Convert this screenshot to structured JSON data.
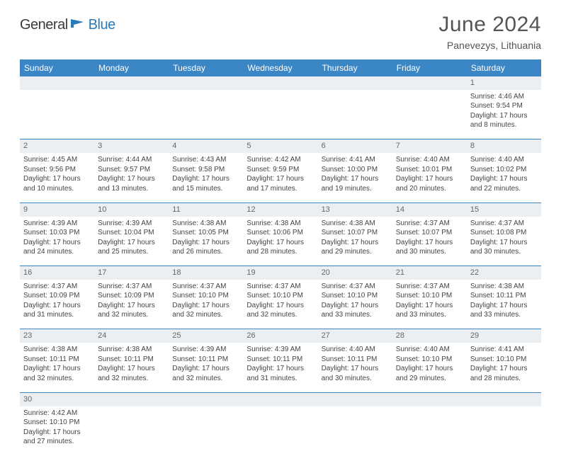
{
  "logo": {
    "part1": "General",
    "part2": "Blue"
  },
  "title": "June 2024",
  "subtitle": "Panevezys, Lithuania",
  "colors": {
    "header_bg": "#3b86c4",
    "header_text": "#ffffff",
    "daynum_bg": "#eceff1",
    "border": "#3b86c4",
    "logo_blue": "#2a7ab8",
    "text": "#444444"
  },
  "weekdays": [
    "Sunday",
    "Monday",
    "Tuesday",
    "Wednesday",
    "Thursday",
    "Friday",
    "Saturday"
  ],
  "weeks": [
    {
      "nums": [
        "",
        "",
        "",
        "",
        "",
        "",
        "1"
      ],
      "cells": [
        null,
        null,
        null,
        null,
        null,
        null,
        {
          "sunrise": "Sunrise: 4:46 AM",
          "sunset": "Sunset: 9:54 PM",
          "d1": "Daylight: 17 hours",
          "d2": "and 8 minutes."
        }
      ]
    },
    {
      "nums": [
        "2",
        "3",
        "4",
        "5",
        "6",
        "7",
        "8"
      ],
      "cells": [
        {
          "sunrise": "Sunrise: 4:45 AM",
          "sunset": "Sunset: 9:56 PM",
          "d1": "Daylight: 17 hours",
          "d2": "and 10 minutes."
        },
        {
          "sunrise": "Sunrise: 4:44 AM",
          "sunset": "Sunset: 9:57 PM",
          "d1": "Daylight: 17 hours",
          "d2": "and 13 minutes."
        },
        {
          "sunrise": "Sunrise: 4:43 AM",
          "sunset": "Sunset: 9:58 PM",
          "d1": "Daylight: 17 hours",
          "d2": "and 15 minutes."
        },
        {
          "sunrise": "Sunrise: 4:42 AM",
          "sunset": "Sunset: 9:59 PM",
          "d1": "Daylight: 17 hours",
          "d2": "and 17 minutes."
        },
        {
          "sunrise": "Sunrise: 4:41 AM",
          "sunset": "Sunset: 10:00 PM",
          "d1": "Daylight: 17 hours",
          "d2": "and 19 minutes."
        },
        {
          "sunrise": "Sunrise: 4:40 AM",
          "sunset": "Sunset: 10:01 PM",
          "d1": "Daylight: 17 hours",
          "d2": "and 20 minutes."
        },
        {
          "sunrise": "Sunrise: 4:40 AM",
          "sunset": "Sunset: 10:02 PM",
          "d1": "Daylight: 17 hours",
          "d2": "and 22 minutes."
        }
      ]
    },
    {
      "nums": [
        "9",
        "10",
        "11",
        "12",
        "13",
        "14",
        "15"
      ],
      "cells": [
        {
          "sunrise": "Sunrise: 4:39 AM",
          "sunset": "Sunset: 10:03 PM",
          "d1": "Daylight: 17 hours",
          "d2": "and 24 minutes."
        },
        {
          "sunrise": "Sunrise: 4:39 AM",
          "sunset": "Sunset: 10:04 PM",
          "d1": "Daylight: 17 hours",
          "d2": "and 25 minutes."
        },
        {
          "sunrise": "Sunrise: 4:38 AM",
          "sunset": "Sunset: 10:05 PM",
          "d1": "Daylight: 17 hours",
          "d2": "and 26 minutes."
        },
        {
          "sunrise": "Sunrise: 4:38 AM",
          "sunset": "Sunset: 10:06 PM",
          "d1": "Daylight: 17 hours",
          "d2": "and 28 minutes."
        },
        {
          "sunrise": "Sunrise: 4:38 AM",
          "sunset": "Sunset: 10:07 PM",
          "d1": "Daylight: 17 hours",
          "d2": "and 29 minutes."
        },
        {
          "sunrise": "Sunrise: 4:37 AM",
          "sunset": "Sunset: 10:07 PM",
          "d1": "Daylight: 17 hours",
          "d2": "and 30 minutes."
        },
        {
          "sunrise": "Sunrise: 4:37 AM",
          "sunset": "Sunset: 10:08 PM",
          "d1": "Daylight: 17 hours",
          "d2": "and 30 minutes."
        }
      ]
    },
    {
      "nums": [
        "16",
        "17",
        "18",
        "19",
        "20",
        "21",
        "22"
      ],
      "cells": [
        {
          "sunrise": "Sunrise: 4:37 AM",
          "sunset": "Sunset: 10:09 PM",
          "d1": "Daylight: 17 hours",
          "d2": "and 31 minutes."
        },
        {
          "sunrise": "Sunrise: 4:37 AM",
          "sunset": "Sunset: 10:09 PM",
          "d1": "Daylight: 17 hours",
          "d2": "and 32 minutes."
        },
        {
          "sunrise": "Sunrise: 4:37 AM",
          "sunset": "Sunset: 10:10 PM",
          "d1": "Daylight: 17 hours",
          "d2": "and 32 minutes."
        },
        {
          "sunrise": "Sunrise: 4:37 AM",
          "sunset": "Sunset: 10:10 PM",
          "d1": "Daylight: 17 hours",
          "d2": "and 32 minutes."
        },
        {
          "sunrise": "Sunrise: 4:37 AM",
          "sunset": "Sunset: 10:10 PM",
          "d1": "Daylight: 17 hours",
          "d2": "and 33 minutes."
        },
        {
          "sunrise": "Sunrise: 4:37 AM",
          "sunset": "Sunset: 10:10 PM",
          "d1": "Daylight: 17 hours",
          "d2": "and 33 minutes."
        },
        {
          "sunrise": "Sunrise: 4:38 AM",
          "sunset": "Sunset: 10:11 PM",
          "d1": "Daylight: 17 hours",
          "d2": "and 33 minutes."
        }
      ]
    },
    {
      "nums": [
        "23",
        "24",
        "25",
        "26",
        "27",
        "28",
        "29"
      ],
      "cells": [
        {
          "sunrise": "Sunrise: 4:38 AM",
          "sunset": "Sunset: 10:11 PM",
          "d1": "Daylight: 17 hours",
          "d2": "and 32 minutes."
        },
        {
          "sunrise": "Sunrise: 4:38 AM",
          "sunset": "Sunset: 10:11 PM",
          "d1": "Daylight: 17 hours",
          "d2": "and 32 minutes."
        },
        {
          "sunrise": "Sunrise: 4:39 AM",
          "sunset": "Sunset: 10:11 PM",
          "d1": "Daylight: 17 hours",
          "d2": "and 32 minutes."
        },
        {
          "sunrise": "Sunrise: 4:39 AM",
          "sunset": "Sunset: 10:11 PM",
          "d1": "Daylight: 17 hours",
          "d2": "and 31 minutes."
        },
        {
          "sunrise": "Sunrise: 4:40 AM",
          "sunset": "Sunset: 10:11 PM",
          "d1": "Daylight: 17 hours",
          "d2": "and 30 minutes."
        },
        {
          "sunrise": "Sunrise: 4:40 AM",
          "sunset": "Sunset: 10:10 PM",
          "d1": "Daylight: 17 hours",
          "d2": "and 29 minutes."
        },
        {
          "sunrise": "Sunrise: 4:41 AM",
          "sunset": "Sunset: 10:10 PM",
          "d1": "Daylight: 17 hours",
          "d2": "and 28 minutes."
        }
      ]
    },
    {
      "nums": [
        "30",
        "",
        "",
        "",
        "",
        "",
        ""
      ],
      "cells": [
        {
          "sunrise": "Sunrise: 4:42 AM",
          "sunset": "Sunset: 10:10 PM",
          "d1": "Daylight: 17 hours",
          "d2": "and 27 minutes."
        },
        null,
        null,
        null,
        null,
        null,
        null
      ],
      "last": true
    }
  ]
}
